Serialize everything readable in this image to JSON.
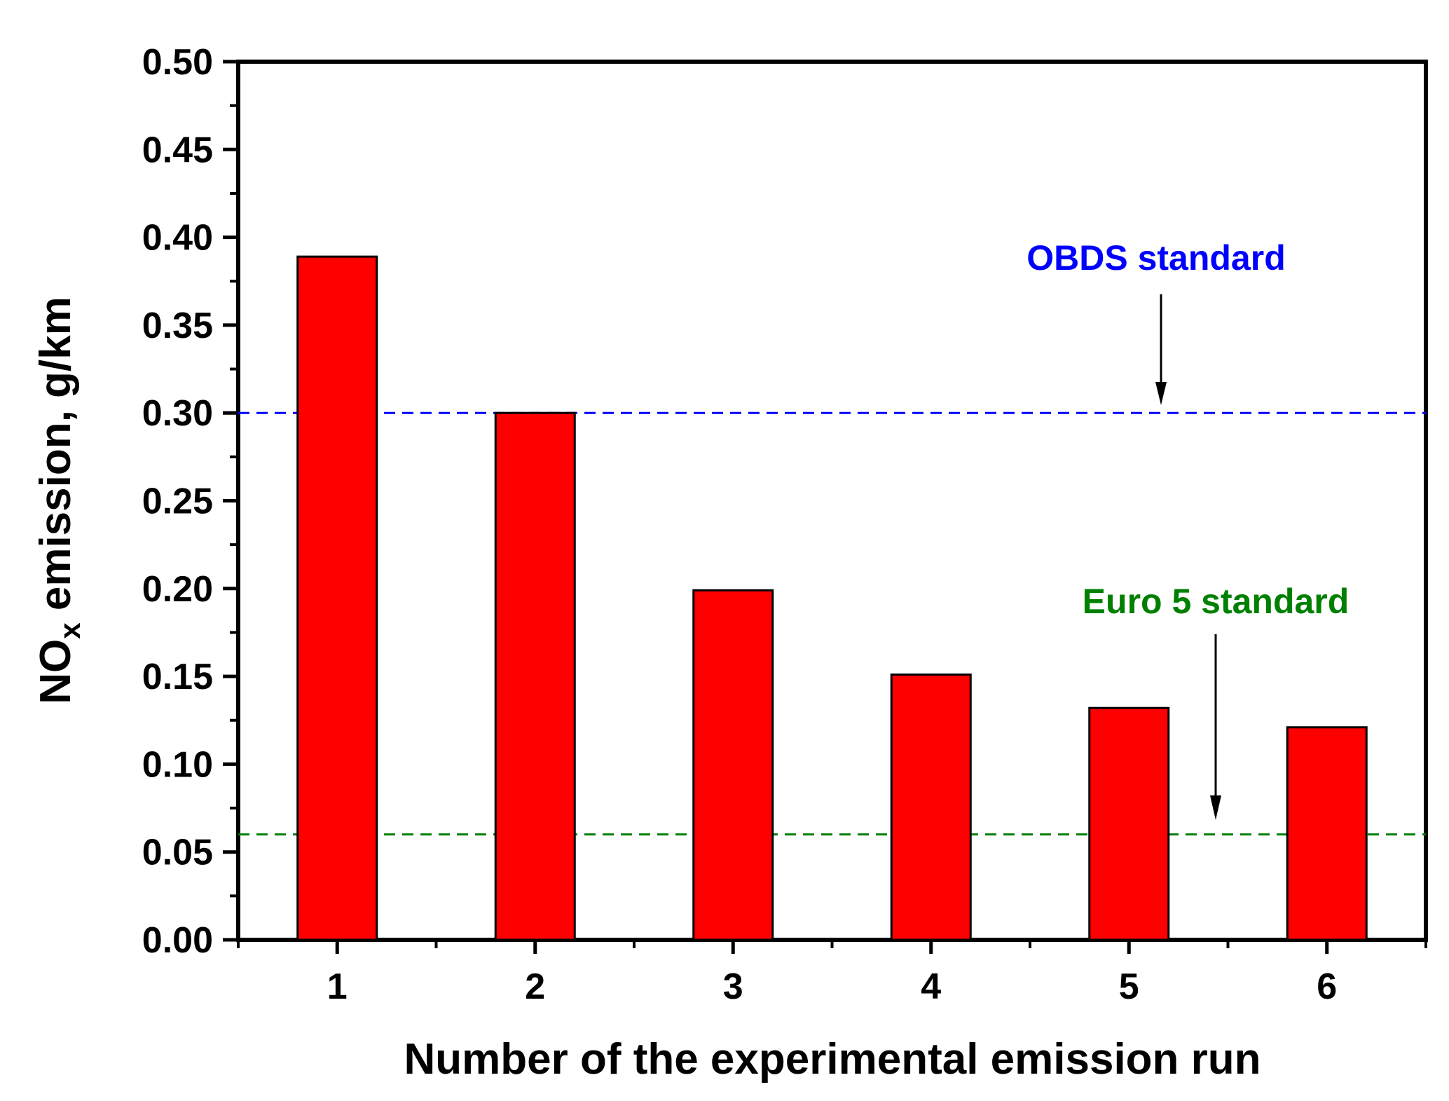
{
  "chart_data": {
    "type": "bar",
    "categories": [
      "1",
      "2",
      "3",
      "4",
      "5",
      "6"
    ],
    "values": [
      0.389,
      0.3,
      0.199,
      0.151,
      0.132,
      0.121
    ],
    "xlabel": "Number of the experimental emission run",
    "ylabel": {
      "main": "NO",
      "sub": "x",
      "rest": " emission, g/km"
    },
    "ylim": [
      0,
      0.5
    ],
    "yticks": [
      "0.00",
      "0.05",
      "0.10",
      "0.15",
      "0.20",
      "0.25",
      "0.30",
      "0.35",
      "0.40",
      "0.45",
      "0.50"
    ],
    "ytick_values": [
      0,
      0.05,
      0.1,
      0.15,
      0.2,
      0.25,
      0.3,
      0.35,
      0.4,
      0.45,
      0.5
    ],
    "grid": false,
    "bar_color": "#ff0000",
    "reference_lines": [
      {
        "label": "OBDS standard",
        "value": 0.3,
        "color": "#0000ff",
        "style": "dashed"
      },
      {
        "label": "Euro 5 standard",
        "value": 0.06,
        "color": "#008000",
        "style": "dashed"
      }
    ]
  }
}
